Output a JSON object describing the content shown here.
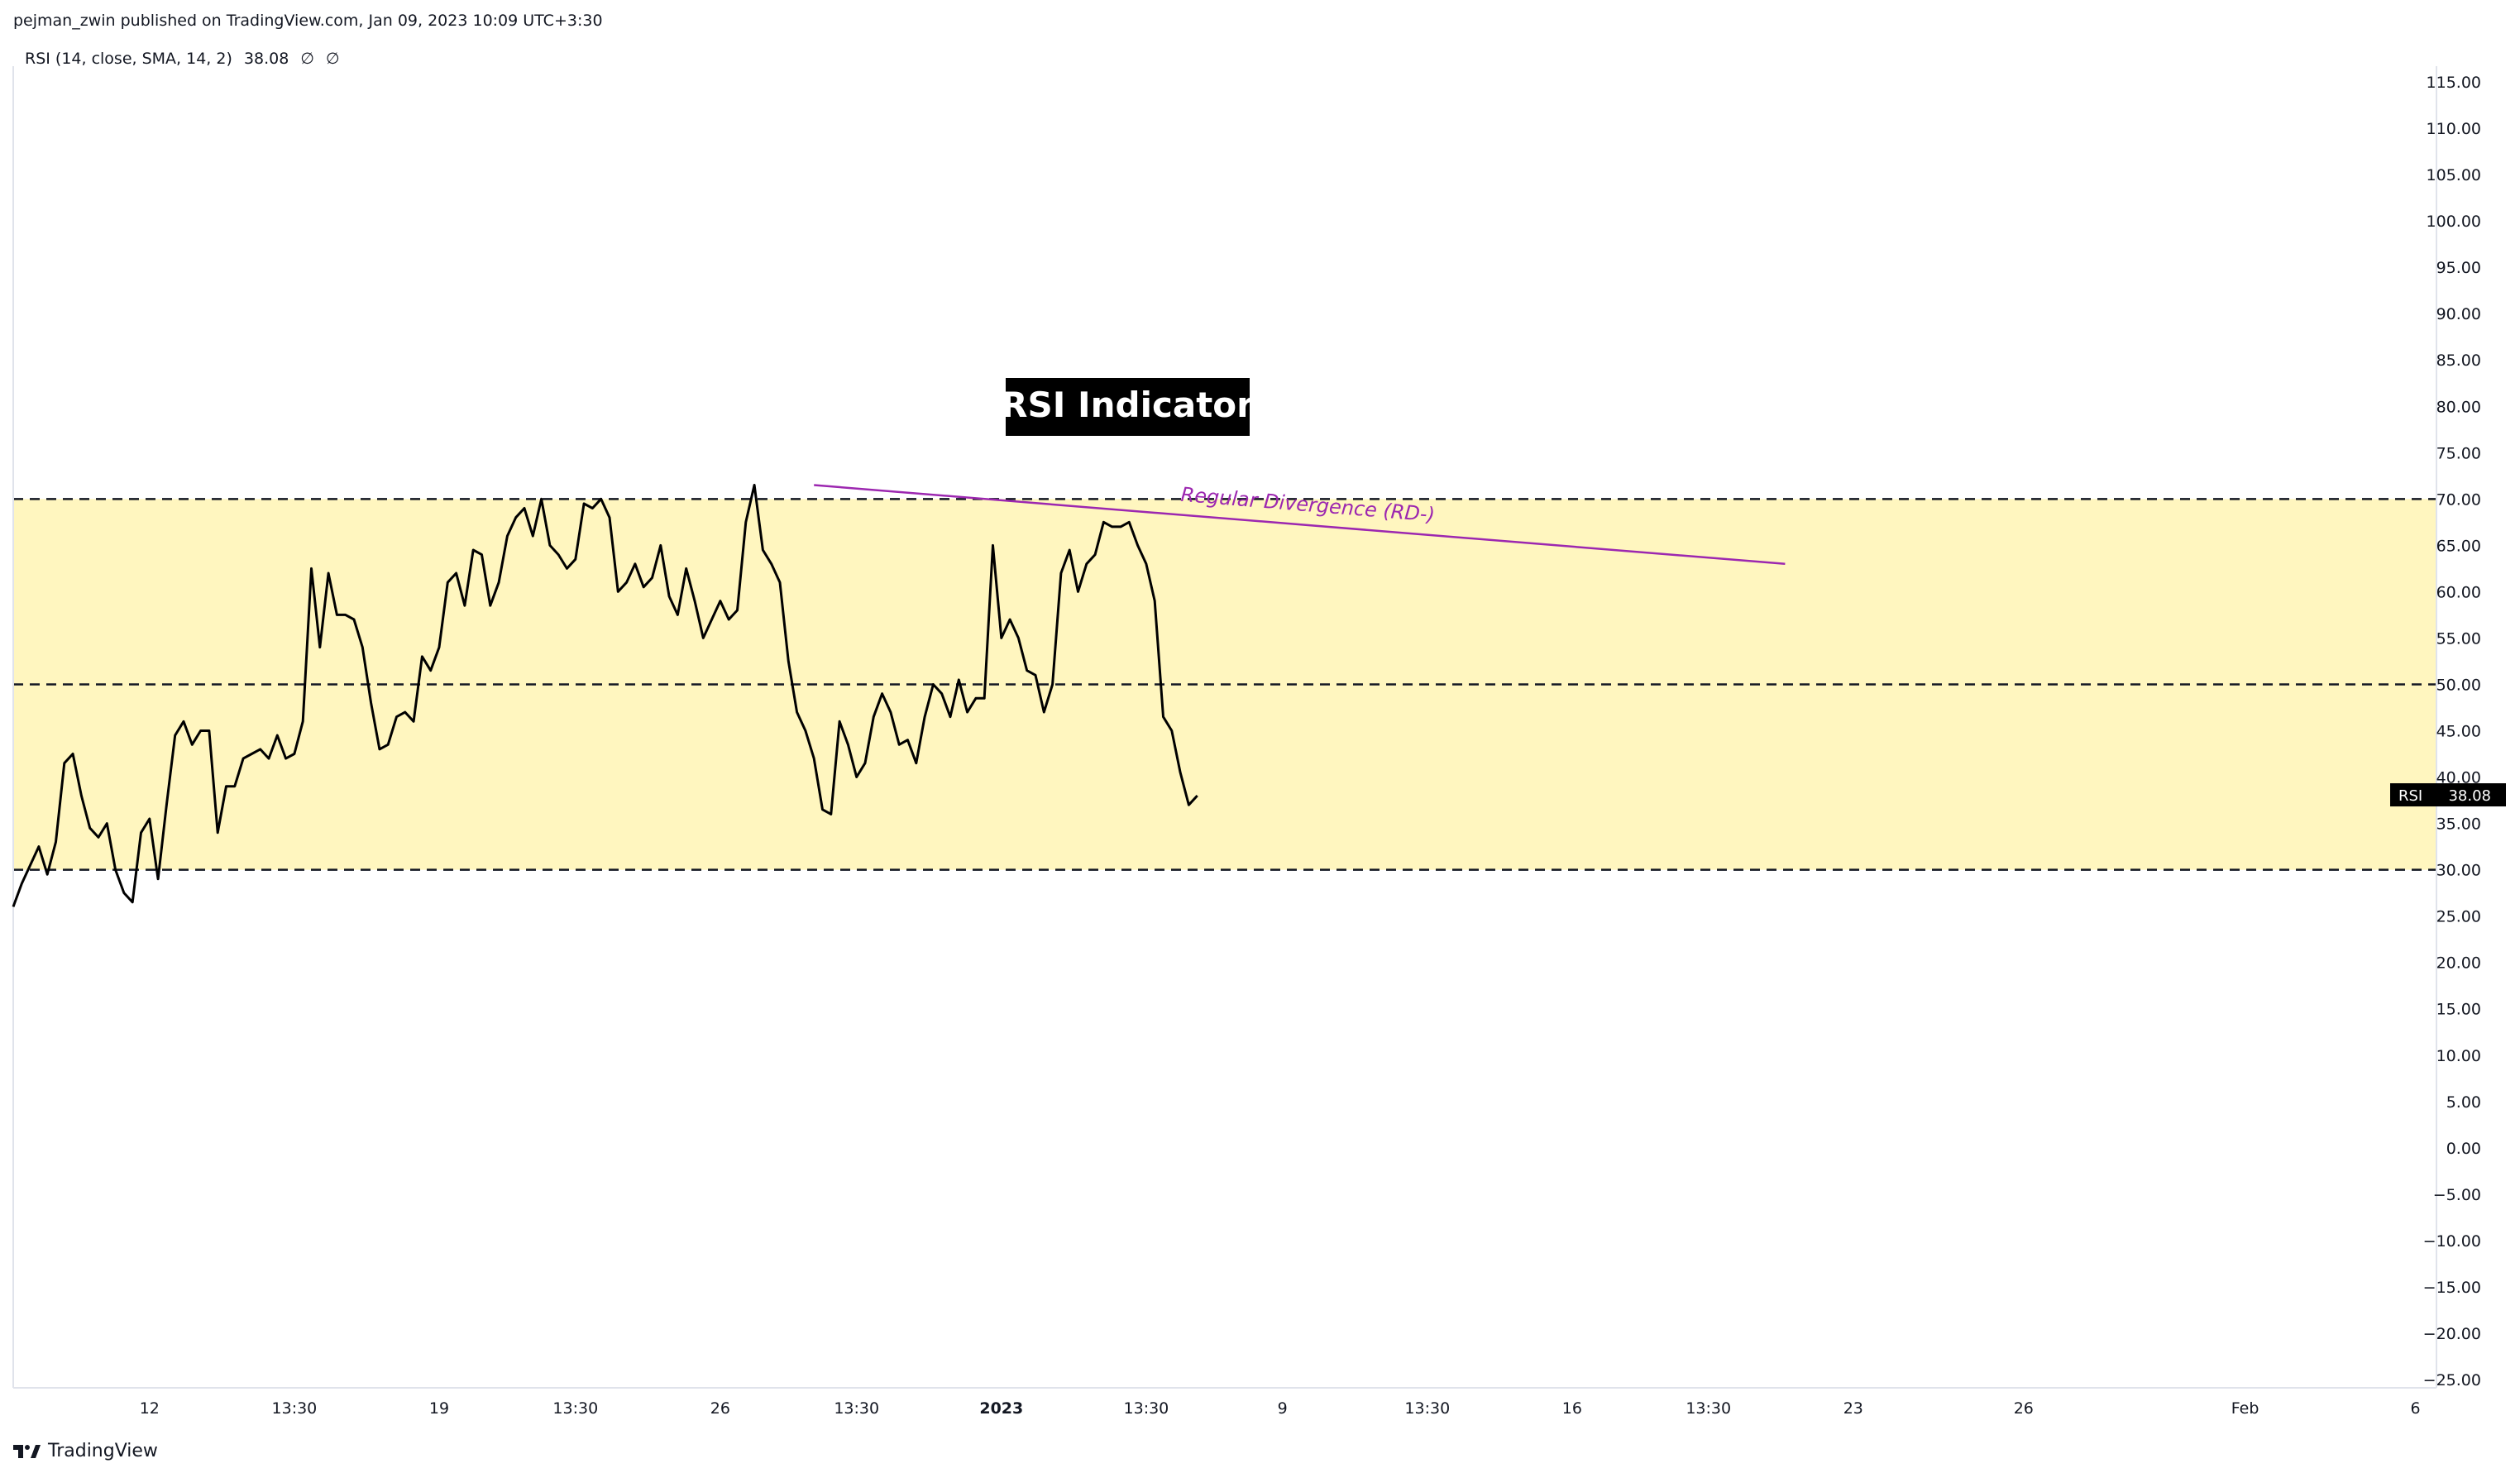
{
  "header": {
    "published_text": "pejman_zwin published on TradingView.com, Jan 09, 2023 10:09 UTC+3:30"
  },
  "legend": {
    "name": "RSI (14, close, SMA, 14, 2)",
    "value": "38.08",
    "extra1": "∅",
    "extra2": "∅"
  },
  "footer": {
    "brand": "TradingView",
    "logo_icon": "tradingview-logo-icon"
  },
  "annotations": {
    "title_box": "RSI Indicator",
    "divergence_label": "Regular Divergence (RD-)",
    "price_tag_label": "RSI",
    "price_tag_value": "38.08"
  },
  "colors": {
    "band_fill": "#fff6bf",
    "rsi_line": "#000000",
    "divergence_line": "#9c27b0",
    "title_box_bg": "#000000",
    "title_box_text": "#ffffff"
  },
  "chart_data": {
    "type": "line",
    "title": "",
    "xlabel": "",
    "ylabel": "",
    "ylim": [
      -25,
      115
    ],
    "yticks": [
      "115.00",
      "110.00",
      "105.00",
      "100.00",
      "95.00",
      "90.00",
      "85.00",
      "80.00",
      "75.00",
      "70.00",
      "65.00",
      "60.00",
      "55.00",
      "50.00",
      "45.00",
      "40.00",
      "35.00",
      "30.00",
      "25.00",
      "20.00",
      "15.00",
      "10.00",
      "5.00",
      "0.00",
      "−5.00",
      "−10.00",
      "−15.00",
      "−20.00",
      "−25.00"
    ],
    "xticks": [
      "12",
      "13:30",
      "19",
      "13:30",
      "26",
      "13:30",
      "2023",
      "13:30",
      "9",
      "13:30",
      "16",
      "13:30",
      "23",
      "26",
      "Feb",
      "6"
    ],
    "xtick_index": [
      16,
      33,
      50,
      66,
      83,
      99,
      116,
      133,
      149,
      166,
      183,
      199,
      216,
      236,
      262,
      282
    ],
    "bands": [
      30,
      70
    ],
    "horizontal_levels": [
      70,
      50,
      30
    ],
    "series": [
      {
        "values": [
          26,
          28.5,
          30.5,
          32.5,
          29.5,
          33,
          41.5,
          42.5,
          38,
          34.5,
          33.5,
          35,
          30,
          27.5,
          26.5,
          34,
          35.5,
          29,
          37,
          44.5,
          46,
          43.5,
          45,
          45,
          34,
          39,
          39,
          42,
          42.5,
          43,
          42,
          44.5,
          42,
          42.5,
          46,
          62.5,
          54,
          62,
          57.5,
          57.5,
          57,
          54,
          48,
          43,
          43.5,
          46.5,
          47,
          46,
          53,
          51.5,
          54,
          61,
          62,
          58.5,
          64.5,
          64,
          58.5,
          61,
          66,
          68,
          69,
          66,
          70,
          65,
          64,
          62.5,
          63.5,
          69.5,
          69,
          70,
          68,
          60,
          61,
          63,
          60.5,
          61.5,
          65,
          59.5,
          57.5,
          62.5,
          59,
          55,
          57,
          59,
          57,
          58,
          67.5,
          71.5,
          64.5,
          63,
          61,
          52.5,
          47,
          45,
          42,
          36.5,
          36,
          46,
          43.5,
          40,
          41.5,
          46.5,
          49,
          47,
          43.5,
          44,
          41.5,
          46.5,
          50,
          49,
          46.5,
          50.5,
          47,
          48.5,
          48.5,
          65,
          55,
          57,
          55,
          51.5,
          51,
          47,
          50,
          62,
          64.5,
          60,
          63,
          64,
          67.5,
          67,
          67,
          67.5,
          65,
          63,
          59,
          46.5,
          45,
          40.5,
          37,
          38
        ]
      }
    ],
    "overlay_line": {
      "name": "Regular Divergence (RD-)",
      "from": [
        94,
        71.5
      ],
      "to": [
        208,
        63
      ]
    },
    "last_value": 38.08
  }
}
